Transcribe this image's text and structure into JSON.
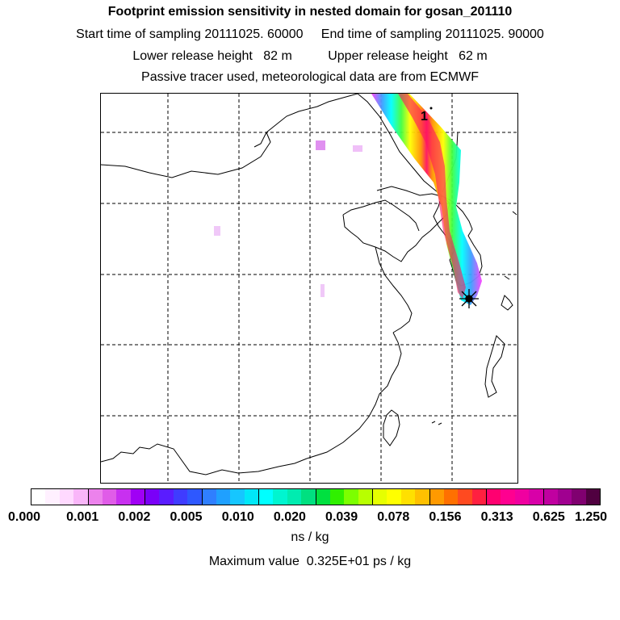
{
  "titles": {
    "line1": "Footprint emission sensitivity in nested domain for gosan_201110",
    "line2": "Start time of sampling 20111025. 60000     End time of sampling 20111025. 90000",
    "line3": "Lower release height   82 m          Upper release height   62 m",
    "line4": "Passive tracer used, meteorological data are from ECMWF"
  },
  "map": {
    "marker_label": "1"
  },
  "colorbar": {
    "labels": [
      "0.000",
      "0.001",
      "0.002",
      "0.005",
      "0.010",
      "0.020",
      "0.039",
      "0.078",
      "0.156",
      "0.313",
      "0.625",
      "1.250"
    ],
    "colors": [
      "#ffffff",
      "#fff0ff",
      "#ffd9ff",
      "#f9b6f9",
      "#ec82ec",
      "#e05ce8",
      "#c830f0",
      "#a000f5",
      "#7a00f8",
      "#5a1cff",
      "#3f3cff",
      "#2e58ff",
      "#2f7fff",
      "#1fa0ff",
      "#16c6ff",
      "#00e8f8",
      "#00ffff",
      "#00f5d0",
      "#00ecb0",
      "#00e080",
      "#00e040",
      "#30f000",
      "#7cff00",
      "#b8ff00",
      "#e6ff00",
      "#ffff00",
      "#ffe000",
      "#ffc000",
      "#ff9a00",
      "#ff7000",
      "#ff4a20",
      "#ff2040",
      "#ff0070",
      "#ff0090",
      "#f000a0",
      "#d800a8",
      "#c000a0",
      "#a00090",
      "#800070",
      "#500040"
    ],
    "unit": "ns / kg"
  },
  "maximum_value": "Maximum value  0.325E+01 ps / kg"
}
